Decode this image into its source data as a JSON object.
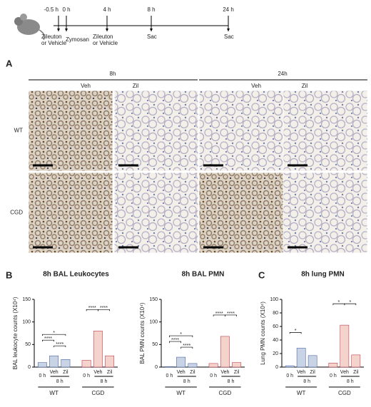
{
  "timeline": {
    "times": [
      "-0.5 h",
      "0 h",
      "4 h",
      "8 h",
      "24 h"
    ],
    "events": [
      "Zileuton",
      "or Vehicle",
      "Zymosan",
      "Zileuton",
      "or Vehicle",
      "Sac",
      "Sac"
    ]
  },
  "panel_a": {
    "label": "A",
    "timepoints": [
      "8h",
      "24h"
    ],
    "treatments": [
      "Veh",
      "Zil",
      "Veh",
      "Zil"
    ],
    "genotypes": [
      "WT",
      "CGD"
    ]
  },
  "panel_b_label": "B",
  "panel_c_label": "C",
  "chart_data": [
    {
      "type": "bar",
      "title": "8h BAL Leukocytes",
      "y_label": "BAL leukocyte counts (X10⁴)",
      "categories": [
        "0 h",
        "Veh",
        "Zil",
        "0 h",
        "Veh",
        "Zil"
      ],
      "groups": [
        "WT",
        "CGD"
      ],
      "period_label": "8 h",
      "values": [
        10,
        25,
        17,
        15,
        80,
        25
      ],
      "colors": [
        "#c9d3e6",
        "#c9d3e6",
        "#c9d3e6",
        "#f4d3cd",
        "#f4d3cd",
        "#f4d3cd"
      ],
      "ylim": [
        0,
        150
      ],
      "yticks": [
        0,
        50,
        100,
        150
      ],
      "annotations": [
        "*",
        "****",
        "****",
        "****",
        "****"
      ]
    },
    {
      "type": "bar",
      "title": "8h BAL PMN",
      "y_label": "BAL PMN counts (X10⁴)",
      "categories": [
        "0 h",
        "Veh",
        "Zil",
        "0 h",
        "Veh",
        "Zil"
      ],
      "groups": [
        "WT",
        "CGD"
      ],
      "period_label": "8 h",
      "values": [
        1,
        22,
        8,
        8,
        68,
        10
      ],
      "colors": [
        "#c9d3e6",
        "#c9d3e6",
        "#c9d3e6",
        "#f4d3cd",
        "#f4d3cd",
        "#f4d3cd"
      ],
      "ylim": [
        0,
        150
      ],
      "yticks": [
        0,
        50,
        100,
        150
      ],
      "annotations": [
        "*",
        "****",
        "****",
        "****",
        "****"
      ]
    },
    {
      "type": "bar",
      "title": "8h lung PMN",
      "y_label": "Lung PMN counts (X10⁴)",
      "categories": [
        "0 h",
        "Veh",
        "Zil",
        "0 h",
        "Veh",
        "Zil"
      ],
      "groups": [
        "WT",
        "CGD"
      ],
      "period_label": "8 h",
      "values": [
        2,
        28,
        17,
        6,
        62,
        18
      ],
      "colors": [
        "#c9d3e6",
        "#c9d3e6",
        "#c9d3e6",
        "#f4d3cd",
        "#f4d3cd",
        "#f4d3cd"
      ],
      "ylim": [
        0,
        100
      ],
      "yticks": [
        0,
        20,
        40,
        60,
        80,
        100
      ],
      "annotations": [
        "*",
        "*",
        "*"
      ]
    }
  ]
}
